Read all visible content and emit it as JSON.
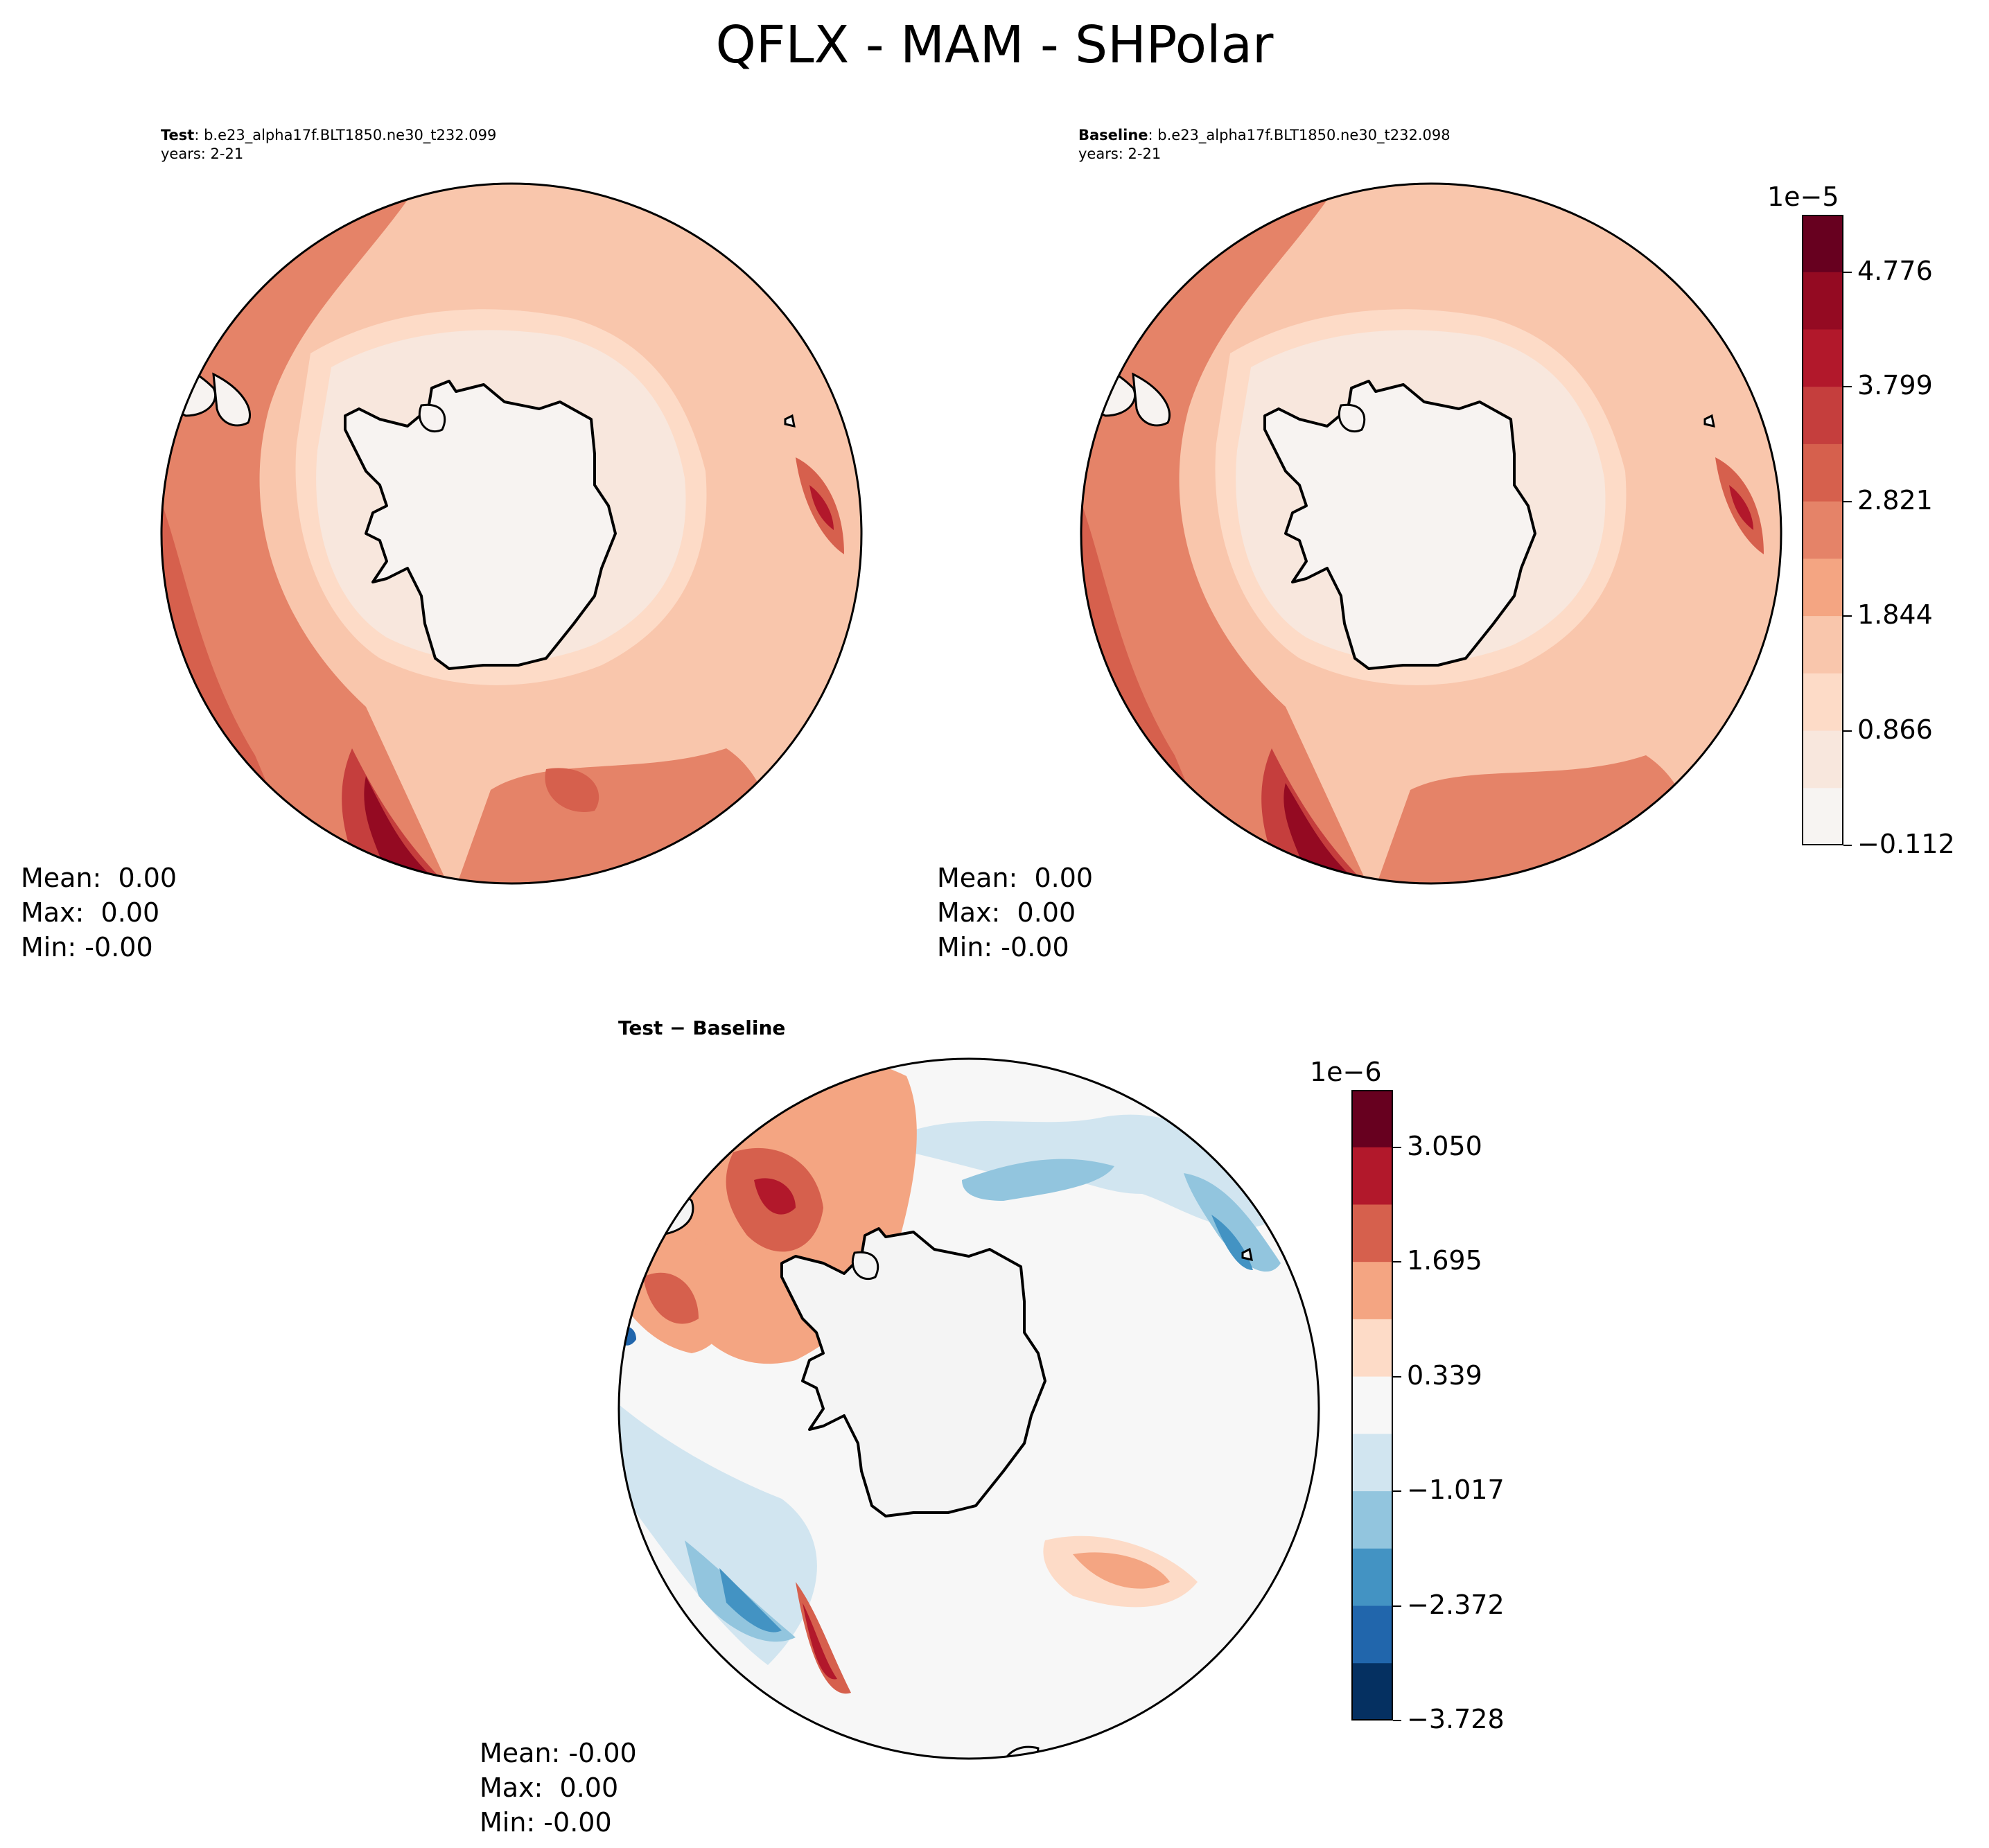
{
  "suptitle": "QFLX - MAM - SHPolar",
  "panels": {
    "test": {
      "title_bold": "Test",
      "title_rest": ": b.e23_alpha17f.BLT1850.ne30_t232.099",
      "years": "years: 2-21",
      "stats": {
        "mean": "Mean:  0.00",
        "max": "Max:  0.00",
        "min": "Min: -0.00"
      }
    },
    "baseline": {
      "title_bold": "Baseline",
      "title_rest": ": b.e23_alpha17f.BLT1850.ne30_t232.098",
      "years": "years: 2-21",
      "stats": {
        "mean": "Mean:  0.00",
        "max": "Max:  0.00",
        "min": "Min: -0.00"
      }
    },
    "diff": {
      "title": "Test − Baseline",
      "stats": {
        "mean": "Mean: -0.00",
        "max": "Max:  0.00",
        "min": "Min: -0.00"
      }
    }
  },
  "colorbars": {
    "main": {
      "exponent": "1e−5",
      "ticks": [
        "4.776",
        "3.799",
        "2.821",
        "1.844",
        "0.866",
        "−0.112"
      ],
      "colors": [
        "#67001f",
        "#940a22",
        "#b2182b",
        "#c53e3d",
        "#d6604d",
        "#e58368",
        "#f4a582",
        "#f9c6ac",
        "#fddbc7",
        "#f8e7dd",
        "#f7f4f2"
      ]
    },
    "diff": {
      "exponent": "1e−6",
      "ticks": [
        "3.050",
        "1.695",
        "0.339",
        "−1.017",
        "−2.372",
        "−3.728"
      ],
      "colors": [
        "#67001f",
        "#b2182b",
        "#d6604d",
        "#f4a582",
        "#fddbc7",
        "#f7f7f7",
        "#d1e5f0",
        "#92c5de",
        "#4393c3",
        "#2166ac",
        "#053061"
      ]
    }
  },
  "map_colors": {
    "land": "#f7f3f1",
    "land_diff": "#f4f4f4",
    "coast": "#000000"
  }
}
